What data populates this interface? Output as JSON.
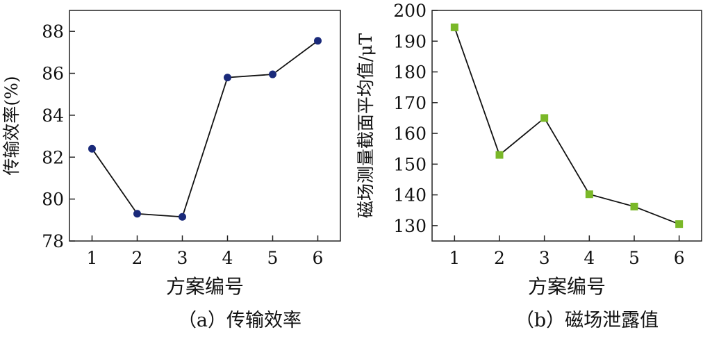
{
  "chart_data": [
    {
      "type": "line",
      "title": "",
      "caption": "（a）传输效率",
      "xlabel": "方案编号",
      "ylabel": "传输效率(%)",
      "x": [
        1,
        2,
        3,
        4,
        5,
        6
      ],
      "xlim": [
        0.5,
        6.5
      ],
      "ylim": [
        78,
        89
      ],
      "yticks": [
        78,
        80,
        82,
        84,
        86,
        88
      ],
      "series": [
        {
          "values": [
            82.4,
            79.3,
            79.15,
            85.8,
            85.95,
            87.55
          ],
          "color": "#1a2a7a",
          "marker": "circle"
        }
      ],
      "grid": false
    },
    {
      "type": "line",
      "title": "",
      "caption": "（b）磁场泄露值",
      "xlabel": "方案编号",
      "ylabel": "磁场测量截面平均值/μT",
      "x": [
        1,
        2,
        3,
        4,
        5,
        6
      ],
      "xlim": [
        0.5,
        6.5
      ],
      "ylim": [
        125,
        200
      ],
      "yticks": [
        130,
        140,
        150,
        160,
        170,
        180,
        190,
        200
      ],
      "series": [
        {
          "values": [
            194.5,
            153,
            165,
            140.2,
            136.2,
            130.5
          ],
          "color": "#7ab828",
          "marker": "square"
        }
      ],
      "grid": false
    }
  ]
}
